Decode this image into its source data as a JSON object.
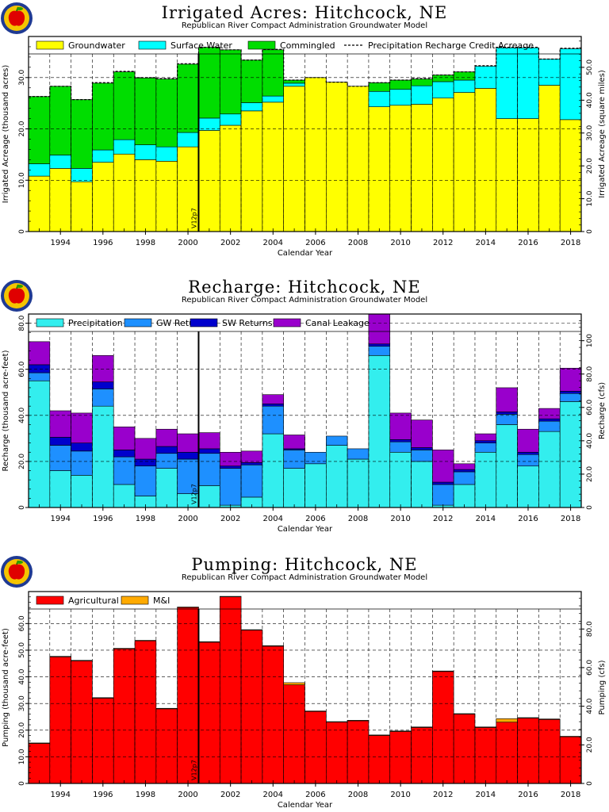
{
  "chart_data": [
    {
      "type": "bar",
      "title": "Irrigated Acres: Hitchcock, NE",
      "subtitle": "Republican River Compact Administration Groundwater Model",
      "xlabel": "Calendar Year",
      "ylabel": "Irrigated Acreage (thousand acres)",
      "y2label": "Irrigated Acreage (square miles)",
      "marker_label": "V12p7",
      "marker_year": 2000.5,
      "xlim": [
        1992.5,
        2018.5
      ],
      "ylim": [
        0,
        38
      ],
      "y2lim": [
        0,
        59.4
      ],
      "yticks": [
        0,
        10,
        20,
        30
      ],
      "yticklabels": [
        "0",
        "10.0",
        "20.0",
        "30.0"
      ],
      "y2ticks": [
        0,
        10,
        20,
        30,
        40,
        50
      ],
      "y2ticklabels": [
        "0",
        "10.0",
        "20.0",
        "30.0",
        "40.0",
        "50.0"
      ],
      "xticks": [
        1994,
        1996,
        1998,
        2000,
        2002,
        2004,
        2006,
        2008,
        2010,
        2012,
        2014,
        2016,
        2018
      ],
      "years": [
        1993,
        1994,
        1995,
        1996,
        1997,
        1998,
        1999,
        2000,
        2001,
        2002,
        2003,
        2004,
        2005,
        2006,
        2007,
        2008,
        2009,
        2010,
        2011,
        2012,
        2013,
        2014,
        2015,
        2016,
        2017,
        2018
      ],
      "series": [
        {
          "name": "Groundwater",
          "color": "#ffff00",
          "values": [
            10.8,
            12.3,
            9.7,
            13.5,
            15.1,
            14.0,
            13.7,
            16.5,
            19.7,
            20.7,
            23.5,
            25.2,
            28.3,
            30.0,
            29.1,
            28.3,
            24.3,
            24.6,
            24.8,
            26.0,
            27.1,
            27.9,
            22.0,
            22.0,
            28.5,
            21.8
          ]
        },
        {
          "name": "Surface Water",
          "color": "#00ffff",
          "values": [
            2.4,
            2.6,
            2.6,
            2.4,
            2.8,
            2.9,
            2.8,
            2.8,
            2.4,
            2.2,
            1.6,
            1.2,
            0.6,
            0.0,
            0.0,
            0.0,
            3.0,
            3.1,
            3.6,
            3.2,
            2.4,
            4.3,
            13.8,
            13.8,
            5.1,
            13.8
          ]
        },
        {
          "name": "Commingled",
          "color": "#00dd00",
          "values": [
            13.1,
            13.4,
            13.4,
            13.0,
            13.2,
            13.0,
            13.2,
            13.3,
            13.8,
            12.5,
            8.3,
            9.0,
            0.6,
            0.0,
            0.0,
            0.0,
            1.7,
            1.8,
            1.3,
            1.3,
            1.6,
            0.0,
            0.0,
            0.0,
            0.0,
            0.0
          ]
        }
      ],
      "line_series": {
        "name": "Precipitation Recharge Credit Acreage",
        "style": "dashed",
        "values": [
          26.3,
          28.3,
          25.7,
          29.0,
          31.2,
          30.0,
          29.8,
          32.7,
          35.9,
          35.4,
          33.4,
          35.5,
          29.5,
          30.0,
          29.1,
          28.3,
          29.0,
          29.5,
          29.8,
          30.5,
          31.1,
          32.3,
          35.9,
          35.9,
          33.6,
          35.7
        ]
      }
    },
    {
      "type": "bar",
      "title": "Recharge: Hitchcock, NE",
      "subtitle": "Republican River Compact Administration Groundwater Model",
      "xlabel": "Calendar Year",
      "ylabel": "Recharge (thousand acre-feet)",
      "y2label": "Recharge (cfs)",
      "marker_label": "V12p7",
      "marker_year": 2000.5,
      "xlim": [
        1992.5,
        2018.5
      ],
      "ylim": [
        0,
        84
      ],
      "y2lim": [
        0,
        116
      ],
      "yticks": [
        0,
        20,
        40,
        60,
        80
      ],
      "yticklabels": [
        "0",
        "20.0",
        "40.0",
        "60.0",
        "80.0"
      ],
      "y2ticks": [
        0,
        20,
        40,
        60,
        80,
        100
      ],
      "y2ticklabels": [
        "0",
        "20.0",
        "40.0",
        "60.0",
        "80.0",
        "100"
      ],
      "xticks": [
        1994,
        1996,
        1998,
        2000,
        2002,
        2004,
        2006,
        2008,
        2010,
        2012,
        2014,
        2016,
        2018
      ],
      "years": [
        1993,
        1994,
        1995,
        1996,
        1997,
        1998,
        1999,
        2000,
        2001,
        2002,
        2003,
        2004,
        2005,
        2006,
        2007,
        2008,
        2009,
        2010,
        2011,
        2012,
        2013,
        2014,
        2015,
        2016,
        2017,
        2018
      ],
      "series": [
        {
          "name": "Precipitation",
          "color": "#33eeee",
          "values": [
            55.0,
            16.0,
            14.0,
            44.0,
            10.0,
            5.0,
            17.0,
            6.0,
            9.5,
            1.0,
            4.5,
            32.0,
            17.0,
            19.0,
            27.0,
            21.0,
            66.0,
            24.0,
            20.0,
            1.0,
            10.0,
            24.0,
            36.0,
            18.0,
            33.0,
            46.0
          ]
        },
        {
          "name": "GW Returns",
          "color": "#1e90ff",
          "values": [
            3.5,
            11.0,
            10.5,
            7.5,
            12.0,
            13.0,
            6.5,
            15.0,
            14.0,
            16.0,
            14.0,
            12.0,
            8.0,
            5.0,
            4.0,
            4.5,
            4.0,
            4.5,
            5.0,
            9.0,
            5.5,
            4.0,
            4.5,
            5.0,
            4.5,
            3.5
          ]
        },
        {
          "name": "SW Returns",
          "color": "#0000cc",
          "values": [
            3.5,
            3.5,
            3.5,
            3.0,
            3.0,
            3.0,
            3.0,
            3.0,
            2.0,
            1.0,
            1.0,
            1.0,
            0.5,
            0.0,
            0.0,
            0.0,
            1.0,
            1.0,
            1.0,
            1.0,
            1.0,
            1.0,
            1.0,
            1.0,
            1.0,
            1.0
          ]
        },
        {
          "name": "Canal Leakage",
          "color": "#9900cc",
          "values": [
            10.0,
            11.5,
            13.0,
            11.5,
            10.0,
            9.0,
            7.5,
            8.0,
            7.0,
            6.0,
            5.0,
            4.0,
            6.0,
            0.0,
            0.0,
            0.0,
            13.0,
            11.5,
            12.0,
            14.0,
            2.5,
            3.0,
            10.5,
            10.0,
            4.5,
            10.0
          ]
        }
      ]
    },
    {
      "type": "bar",
      "title": "Pumping: Hitchcock, NE",
      "subtitle": "Republican River Compact Administration Groundwater Model",
      "xlabel": "Calendar Year",
      "ylabel": "Pumping (thousand acre-feet)",
      "y2label": "Pumping (cfs)",
      "marker_label": "V12p7",
      "marker_year": 2000.5,
      "xlim": [
        1992.5,
        2018.5
      ],
      "ylim": [
        0,
        72
      ],
      "y2lim": [
        0,
        99.4
      ],
      "yticks": [
        0,
        10,
        20,
        30,
        40,
        50,
        60
      ],
      "yticklabels": [
        "0",
        "10.0",
        "20.0",
        "30.0",
        "40.0",
        "50.0",
        "60.0"
      ],
      "y2ticks": [
        0,
        20,
        40,
        60,
        80
      ],
      "y2ticklabels": [
        "0",
        "20.0",
        "40.0",
        "60.0",
        "80.0"
      ],
      "xticks": [
        1994,
        1996,
        1998,
        2000,
        2002,
        2004,
        2006,
        2008,
        2010,
        2012,
        2014,
        2016,
        2018
      ],
      "years": [
        1993,
        1994,
        1995,
        1996,
        1997,
        1998,
        1999,
        2000,
        2001,
        2002,
        2003,
        2004,
        2005,
        2006,
        2007,
        2008,
        2009,
        2010,
        2011,
        2012,
        2013,
        2014,
        2015,
        2016,
        2017,
        2018
      ],
      "series": [
        {
          "name": "Agricultural",
          "color": "#ff0000",
          "values": [
            15.0,
            47.5,
            46.0,
            32.0,
            50.5,
            53.5,
            28.0,
            66.0,
            53.0,
            70.0,
            57.5,
            51.5,
            37.0,
            27.0,
            23.0,
            23.5,
            18.0,
            19.5,
            21.0,
            42.0,
            26.0,
            21.0,
            23.0,
            24.5,
            24.0,
            17.5
          ]
        },
        {
          "name": "M&I",
          "color": "#ffaa00",
          "values": [
            0.2,
            0.2,
            0.2,
            0.2,
            0.2,
            0.2,
            0.2,
            0.2,
            0.2,
            0.2,
            0.2,
            0.2,
            0.8,
            0.2,
            0.2,
            0.2,
            0.2,
            0.2,
            0.2,
            0.2,
            0.2,
            0.2,
            1.3,
            0.2,
            0.2,
            0.2
          ]
        }
      ]
    }
  ]
}
